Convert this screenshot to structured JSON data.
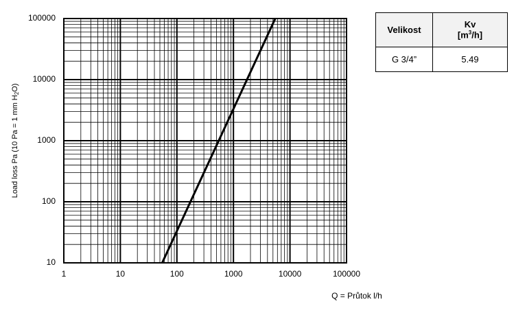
{
  "chart_data": {
    "type": "line",
    "log_x": true,
    "log_y": true,
    "x": [
      54.9,
      5490
    ],
    "values": [
      10,
      100000
    ],
    "color": "#000000",
    "xlim": [
      1,
      100000
    ],
    "ylim": [
      10,
      100000
    ],
    "xticks": [
      1,
      10,
      100,
      1000,
      10000,
      100000
    ],
    "yticks": [
      10,
      100,
      1000,
      10000,
      100000
    ],
    "grid": true,
    "minor_grid": true,
    "x_label": "Q = Průtok l/h",
    "y_label": "Load loss Pa (10 Pa = 1 mm H",
    "y_label_sub": "2",
    "y_label_end": "O)"
  },
  "table": {
    "headers": [
      "Velikost",
      "Kv"
    ],
    "unit_start": "[m",
    "unit_sup": "3",
    "unit_end": "/h]",
    "rows": [
      [
        "G 3/4”",
        "5.49"
      ]
    ]
  }
}
